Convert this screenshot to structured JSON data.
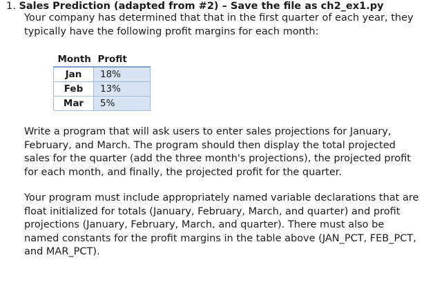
{
  "problem": {
    "number": "1.",
    "title": "Sales Prediction (adapted from #2) – Save the file as ch2_ex1.py",
    "intro_lines": [
      "Your company has determined that that in the first quarter of each year, they",
      "typically have the following profit margins for each month:"
    ]
  },
  "margins_table": {
    "headers": [
      "Month",
      "Profit"
    ],
    "rows": [
      {
        "month": "Jan",
        "profit": "18%"
      },
      {
        "month": "Feb",
        "profit": "13%"
      },
      {
        "month": "Mar",
        "profit": "5%"
      }
    ]
  },
  "paragraph_1_lines": [
    "Write a program that will ask users to enter sales projections for January,",
    "February, and March.  The program should then display the total projected",
    "sales for the quarter (add the three month's projections), the projected profit",
    "for each month, and finally, the projected profit for the quarter."
  ],
  "paragraph_2_lines": [
    "Your program must include appropriately named variable declarations that are",
    "float initialized for totals (January, February, March, and quarter) and profit",
    "projections (January, February, March, and quarter).  There must also be",
    "named constants for the profit margins in the table above (JAN_PCT, FEB_PCT,",
    "and MAR_PCT)."
  ]
}
